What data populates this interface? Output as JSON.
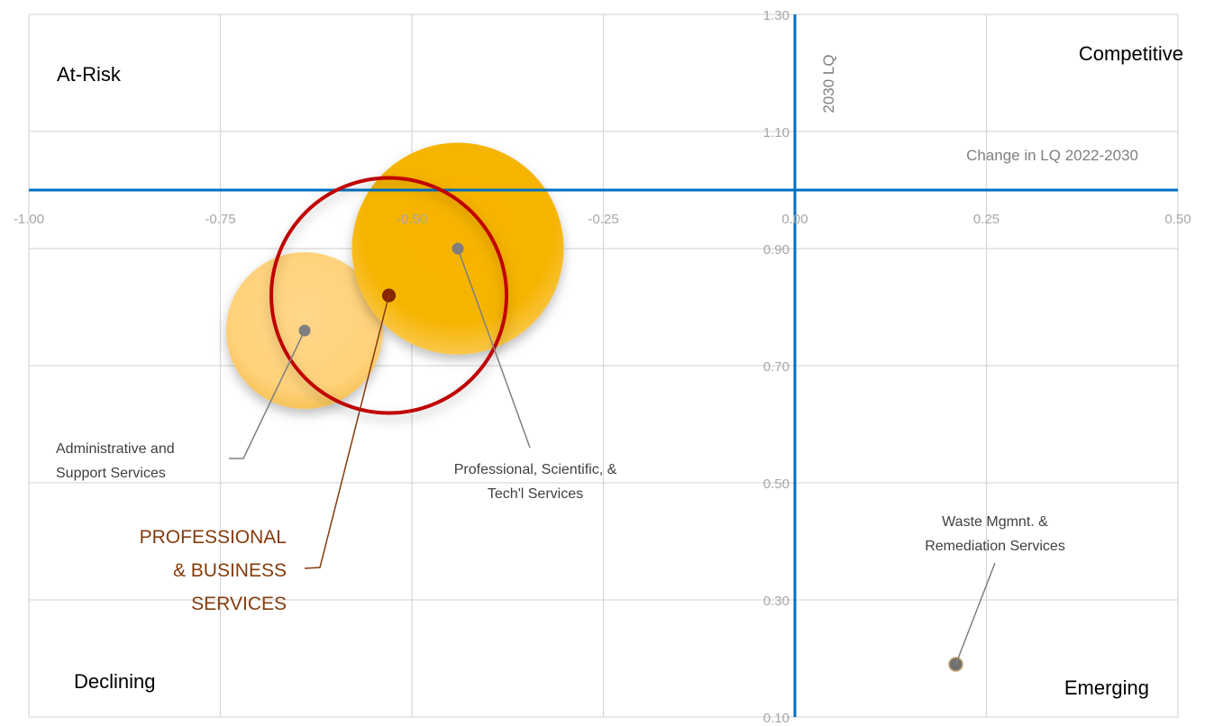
{
  "chart_data": {
    "type": "bubble",
    "title": "",
    "xlabel": "Change in LQ 2022-2030",
    "ylabel": "2030 LQ",
    "xlim": [
      -1.0,
      0.5
    ],
    "ylim": [
      0.1,
      1.3
    ],
    "x_ticks": [
      "-1.00",
      "-0.75",
      "-0.50",
      "-0.25",
      "0.00",
      "0.25",
      "0.50"
    ],
    "y_ticks": [
      "0.10",
      "0.30",
      "0.50",
      "0.70",
      "0.90",
      "1.10",
      "1.30"
    ],
    "x_tick_values": [
      -1.0,
      -0.75,
      -0.5,
      -0.25,
      0.0,
      0.25,
      0.5
    ],
    "y_tick_values": [
      0.1,
      0.3,
      0.5,
      0.7,
      0.9,
      1.1,
      1.3
    ],
    "grid": true,
    "axis_cross": {
      "x": 0.0,
      "y": 1.0
    },
    "quadrants": {
      "top_left": "At-Risk",
      "top_right": "Competitive",
      "bottom_left": "Declining",
      "bottom_right": "Emerging"
    },
    "points": [
      {
        "name": "Administrative and Support Services",
        "label_lines": [
          "Administrative and",
          "Support Services"
        ],
        "x": -0.64,
        "y": 0.76,
        "size": 1.0,
        "style": "light-bubble"
      },
      {
        "name": "Professional, Scientific, & Tech'l Services",
        "label_lines": [
          "Professional, Scientific, &",
          "Tech'l Services"
        ],
        "x": -0.44,
        "y": 0.9,
        "size": 1.35,
        "style": "gold-bubble"
      },
      {
        "name": "PROFESSIONAL & BUSINESS SERVICES",
        "label_lines": [
          "PROFESSIONAL",
          "& BUSINESS",
          "SERVICES"
        ],
        "x": -0.53,
        "y": 0.82,
        "size": 1.5,
        "style": "total-ring"
      },
      {
        "name": "Waste Mgmnt. & Remediation Services",
        "label_lines": [
          "Waste Mgmnt. &",
          "Remediation Services"
        ],
        "x": 0.21,
        "y": 0.19,
        "size": 0.0,
        "style": "dot"
      }
    ],
    "colors": {
      "axis": "#0070c0",
      "grid": "#d9d9d9",
      "tick_text": "#a6a6a6",
      "label_text": "#404040",
      "total_label": "#843c0c",
      "total_ring": "#c00000",
      "gold": "#f5b400",
      "light_gold": "#ffd27a",
      "dot": "#7f7f7f"
    }
  }
}
